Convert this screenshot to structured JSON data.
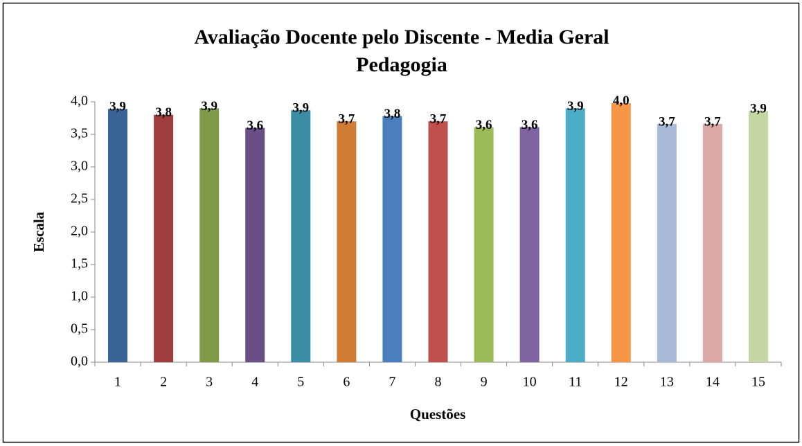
{
  "chart_data": {
    "type": "bar",
    "title": [
      "Avaliação Docente pelo Discente  - Media Geral",
      "Pedagogia"
    ],
    "x_label": "Questões",
    "y_label": "Escala",
    "categories": [
      "1",
      "2",
      "3",
      "4",
      "5",
      "6",
      "7",
      "8",
      "9",
      "10",
      "11",
      "12",
      "13",
      "14",
      "15"
    ],
    "values": [
      3.89,
      3.8,
      3.9,
      3.6,
      3.87,
      3.7,
      3.78,
      3.7,
      3.61,
      3.61,
      3.9,
      3.98,
      3.66,
      3.66,
      3.86
    ],
    "value_labels": [
      "3,9",
      "3,8",
      "3,9",
      "3,6",
      "3,9",
      "3,7",
      "3,8",
      "3,7",
      "3,6",
      "3,6",
      "3,9",
      "4,0",
      "3,7",
      "3,7",
      "3,9"
    ],
    "colors": [
      "#3b6496",
      "#9e3d3b",
      "#7f9a48",
      "#6a4e86",
      "#3a8da4",
      "#d17c37",
      "#4a7fbe",
      "#c0504d",
      "#9bbb59",
      "#8064a2",
      "#4bacc6",
      "#f79646",
      "#a9b9d8",
      "#dba9a8",
      "#c5d6a4"
    ],
    "ylim": [
      0,
      4
    ],
    "yticks": [
      {
        "value": 0,
        "label": "0,0"
      },
      {
        "value": 0.5,
        "label": "0,5"
      },
      {
        "value": 1,
        "label": "1,0"
      },
      {
        "value": 1.5,
        "label": "1,5"
      },
      {
        "value": 2,
        "label": "2,0"
      },
      {
        "value": 2.5,
        "label": "2,5"
      },
      {
        "value": 3,
        "label": "3,0"
      },
      {
        "value": 3.5,
        "label": "3,5"
      },
      {
        "value": 4,
        "label": "4,0"
      }
    ]
  }
}
